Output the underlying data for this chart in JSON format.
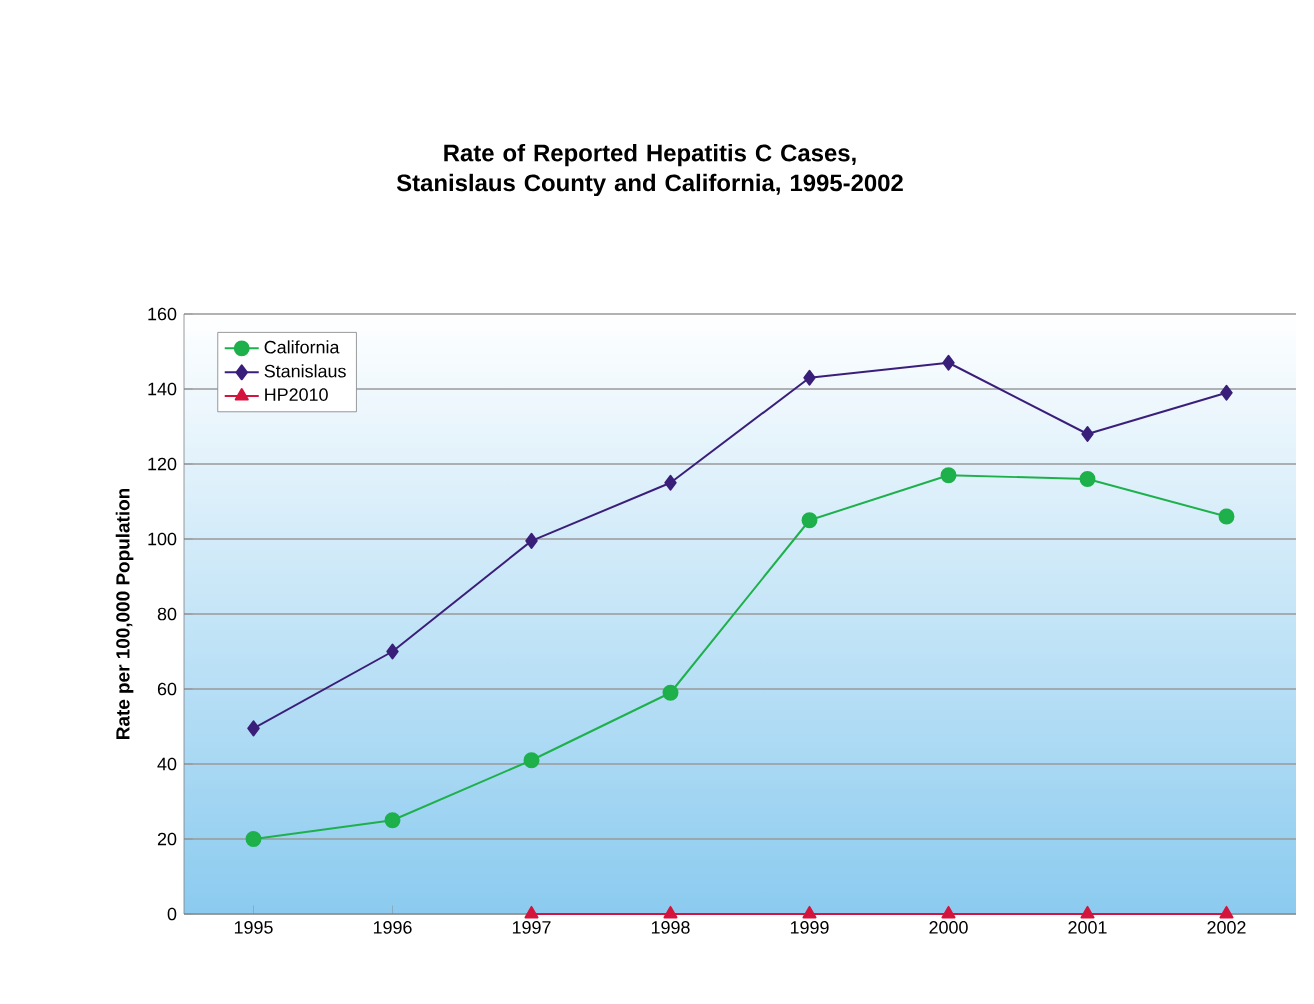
{
  "chart_data": {
    "type": "line",
    "title": "Rate of Reported Hepatitis C Cases, Stanislaus County and California, 1995-2002",
    "ylabel": "Rate per 100,000 Population",
    "categories": [
      "1995",
      "1996",
      "1997",
      "1998",
      "1999",
      "2000",
      "2001",
      "2002"
    ],
    "series": [
      {
        "name": "California",
        "color": "#1db04b",
        "marker": "circle",
        "values": [
          20,
          25,
          41,
          59,
          105,
          117,
          116,
          106
        ]
      },
      {
        "name": "Stanislaus",
        "color": "#3a1f7a",
        "marker": "diamond",
        "values": [
          49.5,
          70,
          99.5,
          115,
          143,
          147,
          128,
          139
        ]
      },
      {
        "name": "HP2010",
        "color": "#d4143c",
        "marker": "triangle",
        "values": [
          null,
          null,
          0,
          0,
          0,
          0,
          0,
          0
        ]
      }
    ],
    "ylim": [
      0,
      160
    ],
    "yticks": [
      0,
      20,
      40,
      60,
      80,
      100,
      120,
      140,
      160
    ],
    "grid": "y",
    "legend": "top left",
    "line_style": "solid"
  }
}
